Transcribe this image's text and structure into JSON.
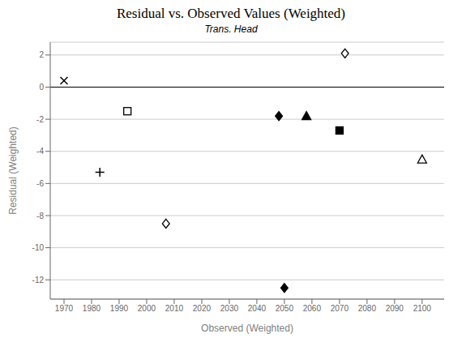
{
  "chart_data": {
    "type": "scatter",
    "title": "Residual vs. Observed Values (Weighted)",
    "subtitle": "Trans. Head",
    "xlabel": "Observed (Weighted)",
    "ylabel": "Residual (Weighted)",
    "xlim": [
      1965,
      2108
    ],
    "ylim": [
      -13.2,
      2.8
    ],
    "xticks": [
      1970,
      1980,
      1990,
      2000,
      2010,
      2020,
      2030,
      2040,
      2050,
      2060,
      2070,
      2080,
      2090,
      2100
    ],
    "yticks": [
      2,
      0,
      -2,
      -4,
      -6,
      -8,
      -10,
      -12
    ],
    "grid": true,
    "hline": 0,
    "series": [
      {
        "marker": "x",
        "color": "#000000",
        "x": [
          1970
        ],
        "values": [
          0.4
        ]
      },
      {
        "marker": "plus",
        "color": "#000000",
        "x": [
          1983
        ],
        "values": [
          -5.3
        ]
      },
      {
        "marker": "square",
        "color": "#ffffff",
        "x": [
          1993
        ],
        "values": [
          -1.5
        ]
      },
      {
        "marker": "diamond",
        "color": "#ffffff",
        "x": [
          2007,
          2072
        ],
        "values": [
          -8.5,
          2.1
        ]
      },
      {
        "marker": "diamond",
        "color": "#000000",
        "x": [
          2048,
          2050
        ],
        "values": [
          -1.8,
          -12.5
        ]
      },
      {
        "marker": "triangle",
        "color": "#000000",
        "x": [
          2058
        ],
        "values": [
          -1.8
        ]
      },
      {
        "marker": "square",
        "color": "#000000",
        "x": [
          2070
        ],
        "values": [
          -2.7
        ]
      },
      {
        "marker": "triangle",
        "color": "#ffffff",
        "x": [
          2100
        ],
        "values": [
          -4.5
        ]
      }
    ]
  }
}
